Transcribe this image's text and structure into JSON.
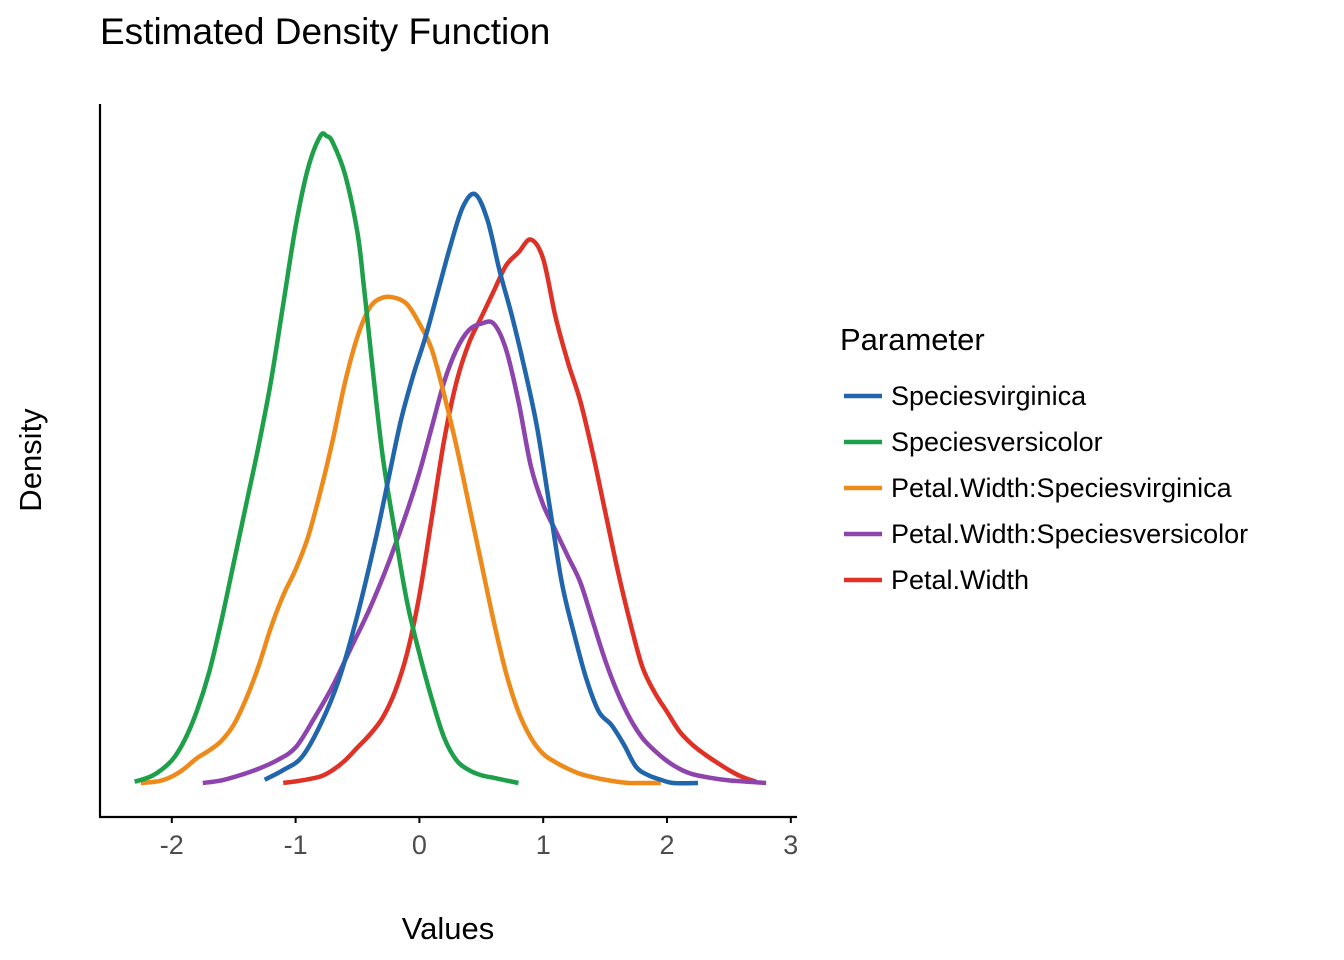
{
  "chart_data": {
    "type": "line",
    "title": "Estimated Density Function",
    "xlabel": "Values",
    "ylabel": "Density",
    "xlim": [
      -2.58,
      3.05
    ],
    "ylim": [
      0,
      1
    ],
    "xticks": [
      -2,
      -1,
      0,
      1,
      2,
      3
    ],
    "xtick_labels": [
      "-2",
      "-1",
      "0",
      "1",
      "2",
      "3"
    ],
    "y_tick_labels_shown": false,
    "grid": false,
    "legend": {
      "title": "Parameter",
      "position": "right"
    },
    "series": [
      {
        "name": "Speciesvirginica",
        "color": "#2166ac",
        "x": [
          -1.25,
          -1.1,
          -0.95,
          -0.8,
          -0.65,
          -0.5,
          -0.35,
          -0.25,
          -0.15,
          -0.05,
          0.05,
          0.15,
          0.25,
          0.35,
          0.45,
          0.55,
          0.65,
          0.75,
          0.85,
          0.95,
          1.05,
          1.15,
          1.25,
          1.35,
          1.45,
          1.55,
          1.65,
          1.75,
          1.85,
          1.95,
          2.05,
          2.25
        ],
        "y": [
          0.005,
          0.02,
          0.04,
          0.09,
          0.16,
          0.26,
          0.38,
          0.47,
          0.56,
          0.63,
          0.69,
          0.76,
          0.83,
          0.89,
          0.91,
          0.87,
          0.79,
          0.72,
          0.64,
          0.55,
          0.43,
          0.31,
          0.23,
          0.16,
          0.11,
          0.09,
          0.06,
          0.025,
          0.012,
          0.005,
          0.0,
          0.0
        ]
      },
      {
        "name": "Speciesversicolor",
        "color": "#1ea04a",
        "x": [
          -2.3,
          -2.15,
          -2.0,
          -1.9,
          -1.8,
          -1.7,
          -1.6,
          -1.5,
          -1.4,
          -1.3,
          -1.2,
          -1.1,
          -1.0,
          -0.9,
          -0.8,
          -0.75,
          -0.7,
          -0.6,
          -0.5,
          -0.45,
          -0.4,
          -0.3,
          -0.2,
          -0.1,
          0.0,
          0.1,
          0.2,
          0.3,
          0.4,
          0.5,
          0.6,
          0.7,
          0.8
        ],
        "y": [
          0.002,
          0.012,
          0.035,
          0.065,
          0.11,
          0.17,
          0.25,
          0.34,
          0.43,
          0.52,
          0.62,
          0.74,
          0.86,
          0.95,
          1.0,
          1.0,
          0.99,
          0.94,
          0.85,
          0.77,
          0.68,
          0.51,
          0.39,
          0.28,
          0.2,
          0.13,
          0.07,
          0.035,
          0.02,
          0.012,
          0.008,
          0.004,
          0.0
        ]
      },
      {
        "name": "Petal.Width:Speciesvirginica",
        "color": "#ee8a1a",
        "x": [
          -2.25,
          -2.1,
          -2.0,
          -1.9,
          -1.8,
          -1.7,
          -1.6,
          -1.5,
          -1.4,
          -1.3,
          -1.2,
          -1.1,
          -1.0,
          -0.9,
          -0.8,
          -0.7,
          -0.6,
          -0.5,
          -0.4,
          -0.3,
          -0.2,
          -0.1,
          0.0,
          0.1,
          0.2,
          0.3,
          0.4,
          0.5,
          0.6,
          0.7,
          0.8,
          0.9,
          1.0,
          1.1,
          1.2,
          1.3,
          1.4,
          1.5,
          1.6,
          1.7,
          1.8,
          1.95
        ],
        "y": [
          0.0,
          0.003,
          0.01,
          0.022,
          0.038,
          0.05,
          0.065,
          0.09,
          0.13,
          0.18,
          0.24,
          0.29,
          0.33,
          0.38,
          0.45,
          0.53,
          0.62,
          0.69,
          0.735,
          0.75,
          0.75,
          0.74,
          0.71,
          0.67,
          0.6,
          0.52,
          0.43,
          0.34,
          0.25,
          0.17,
          0.11,
          0.07,
          0.045,
          0.032,
          0.022,
          0.014,
          0.009,
          0.005,
          0.002,
          0.0,
          0.0,
          0.0
        ]
      },
      {
        "name": "Petal.Width:Speciesversicolor",
        "color": "#8e44ad",
        "x": [
          -1.75,
          -1.6,
          -1.45,
          -1.3,
          -1.15,
          -1.0,
          -0.85,
          -0.7,
          -0.55,
          -0.4,
          -0.25,
          -0.1,
          0.0,
          0.1,
          0.2,
          0.3,
          0.4,
          0.5,
          0.6,
          0.7,
          0.8,
          0.9,
          1.0,
          1.1,
          1.2,
          1.3,
          1.4,
          1.5,
          1.6,
          1.7,
          1.8,
          1.9,
          2.0,
          2.1,
          2.2,
          2.35,
          2.5,
          2.65,
          2.8
        ],
        "y": [
          0.0,
          0.004,
          0.012,
          0.022,
          0.035,
          0.055,
          0.1,
          0.15,
          0.21,
          0.27,
          0.34,
          0.42,
          0.48,
          0.55,
          0.62,
          0.67,
          0.7,
          0.71,
          0.71,
          0.67,
          0.59,
          0.49,
          0.43,
          0.39,
          0.35,
          0.31,
          0.25,
          0.19,
          0.14,
          0.1,
          0.07,
          0.05,
          0.034,
          0.022,
          0.014,
          0.008,
          0.004,
          0.002,
          0.0
        ]
      },
      {
        "name": "Petal.Width",
        "color": "#e03126",
        "x": [
          -1.1,
          -0.95,
          -0.8,
          -0.7,
          -0.6,
          -0.5,
          -0.4,
          -0.3,
          -0.2,
          -0.1,
          0.0,
          0.1,
          0.2,
          0.3,
          0.4,
          0.5,
          0.6,
          0.7,
          0.8,
          0.9,
          1.0,
          1.1,
          1.2,
          1.3,
          1.4,
          1.5,
          1.6,
          1.7,
          1.8,
          1.9,
          2.0,
          2.1,
          2.2,
          2.3,
          2.4,
          2.5,
          2.6,
          2.72
        ],
        "y": [
          0.0,
          0.004,
          0.01,
          0.02,
          0.035,
          0.055,
          0.075,
          0.1,
          0.14,
          0.2,
          0.29,
          0.41,
          0.53,
          0.62,
          0.68,
          0.72,
          0.76,
          0.8,
          0.82,
          0.84,
          0.81,
          0.72,
          0.65,
          0.59,
          0.51,
          0.42,
          0.33,
          0.25,
          0.18,
          0.14,
          0.11,
          0.08,
          0.06,
          0.045,
          0.032,
          0.02,
          0.01,
          0.002
        ]
      }
    ]
  }
}
